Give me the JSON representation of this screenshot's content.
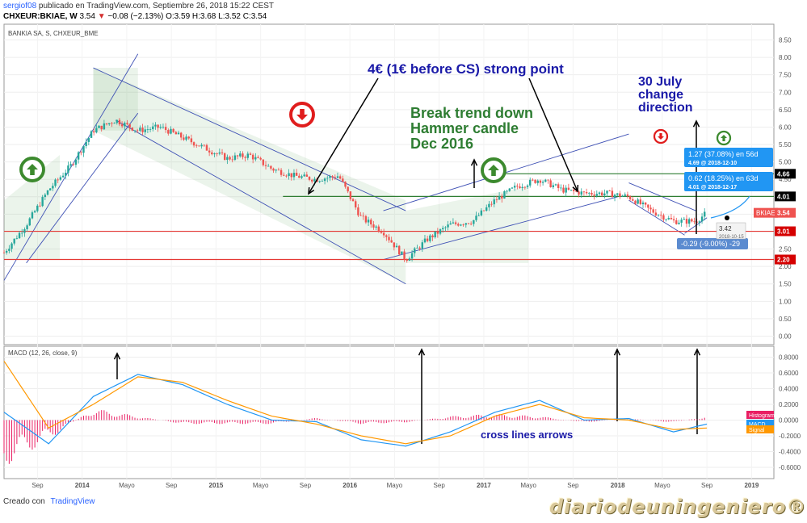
{
  "header": {
    "user": "sergiof08",
    "published": "publicado en TradingView.com, Septiembre 26, 2018 15:22 CEST",
    "symbol": "CHXEUR:BKIAE, W",
    "price": "3.54",
    "arrow": "▼",
    "change": "−0.08 (−2.13%)",
    "ohlc": "O:3.59 H:3.68 L:3.52 C:3.54"
  },
  "footer": {
    "created_with": "Creado con",
    "brand": "TradingView"
  },
  "watermark": "diariodeuningeniero®",
  "colors": {
    "up": "#26a69a",
    "down": "#ef5350",
    "macd": "#2196f3",
    "signal": "#ff9800",
    "histogram": "#e91e63",
    "annotation_blue": "#1a1aa8",
    "annotation_green": "#2e7d32",
    "support": "#e53935",
    "channel": "#3f51b5"
  },
  "chart_data": [
    {
      "type": "candlestick",
      "title": "BANKIA SA, S, CHXEUR_BME",
      "ylim": [
        -0.2,
        8.7
      ],
      "y_ticks": [
        "8.50",
        "8.00",
        "7.50",
        "7.00",
        "6.50",
        "6.00",
        "5.50",
        "5.00",
        "4.50",
        "4.00",
        "3.50",
        "3.00",
        "2.50",
        "2.00",
        "1.50",
        "1.00",
        "0.50",
        "0.00"
      ],
      "x_ticks": [
        "Sep",
        "2014",
        "Mayo",
        "Sep",
        "2015",
        "Mayo",
        "Sep",
        "2016",
        "Mayo",
        "Sep",
        "2017",
        "Mayo",
        "Sep",
        "2018",
        "Mayo",
        "Sep",
        "2019"
      ],
      "x": [
        "2013-06",
        "2013-08",
        "2013-10",
        "2013-12",
        "2014-02",
        "2014-04",
        "2014-06",
        "2014-08",
        "2014-10",
        "2014-12",
        "2015-02",
        "2015-04",
        "2015-06",
        "2015-08",
        "2015-10",
        "2015-12",
        "2016-02",
        "2016-04",
        "2016-06",
        "2016-08",
        "2016-10",
        "2016-12",
        "2017-02",
        "2017-04",
        "2017-06",
        "2017-08",
        "2017-10",
        "2017-12",
        "2018-02",
        "2018-04",
        "2018-06",
        "2018-08",
        "2018-09"
      ],
      "close": [
        2.4,
        3.2,
        4.2,
        4.9,
        5.9,
        6.2,
        5.9,
        6.0,
        5.7,
        5.4,
        5.1,
        5.2,
        4.8,
        4.6,
        4.5,
        4.6,
        3.4,
        3.0,
        2.2,
        2.8,
        3.2,
        3.3,
        3.9,
        4.3,
        4.5,
        4.2,
        4.1,
        4.1,
        4.0,
        3.6,
        3.3,
        3.3,
        3.54
      ],
      "price_labels": [
        {
          "text": "4.66",
          "value": 4.66,
          "color": "#000000"
        },
        {
          "text": "4.01",
          "value": 4.01,
          "color": "#000000"
        },
        {
          "text": "BKIAE",
          "value": 3.54,
          "color": "#ef5350"
        },
        {
          "text": "3.54",
          "value": 3.54,
          "color": "#ef5350"
        },
        {
          "text": "3.01",
          "value": 3.01,
          "color": "#d50000"
        },
        {
          "text": "2.20",
          "value": 2.2,
          "color": "#d50000"
        }
      ],
      "horizontal_lines": [
        {
          "value": 4.66,
          "color": "#2e7d32"
        },
        {
          "value": 4.01,
          "color": "#2e7d32"
        },
        {
          "value": 3.01,
          "color": "#e53935"
        },
        {
          "value": 2.2,
          "color": "#e53935"
        }
      ],
      "annotations": [
        {
          "text": "4€ (1€ before CS) strong point",
          "color": "#1a1aa8"
        },
        {
          "text": "Break trend down",
          "color": "#2e7d32"
        },
        {
          "text": "Hammer candle",
          "color": "#2e7d32"
        },
        {
          "text": "Dec 2016",
          "color": "#2e7d32"
        },
        {
          "text": "30 July",
          "color": "#1a1aa8"
        },
        {
          "text": "change",
          "color": "#1a1aa8"
        },
        {
          "text": "direction",
          "color": "#1a1aa8"
        }
      ],
      "projection_boxes": [
        {
          "line1": "1.27 (37.08%) en 56d",
          "line2": "4.69 @ 2018-12-10"
        },
        {
          "line1": "0.62 (18.25%) en 63d",
          "line2": "4.01 @ 2018-12-17"
        },
        {
          "line1": "-0.29 (-9.00%) -29",
          "line2": ""
        }
      ],
      "point_label": {
        "value": "3.42",
        "date": "2018-10-15"
      }
    },
    {
      "type": "line",
      "title": "MACD (12, 26, close, 9)",
      "ylim": [
        -0.75,
        0.95
      ],
      "y_ticks": [
        "0.8000",
        "0.6000",
        "0.4000",
        "0.2000",
        "0.0000",
        "-0.2000",
        "-0.4000",
        "-0.6000"
      ],
      "x": [
        "2013-06",
        "2013-10",
        "2014-02",
        "2014-06",
        "2014-10",
        "2015-02",
        "2015-06",
        "2015-10",
        "2016-02",
        "2016-06",
        "2016-10",
        "2017-02",
        "2017-06",
        "2017-10",
        "2018-02",
        "2018-06",
        "2018-09"
      ],
      "series": [
        {
          "name": "MACD",
          "values": [
            0.1,
            -0.3,
            0.3,
            0.58,
            0.45,
            0.2,
            0.0,
            -0.02,
            -0.25,
            -0.33,
            -0.15,
            0.1,
            0.25,
            0.0,
            0.02,
            -0.15,
            -0.05
          ]
        },
        {
          "name": "Signal",
          "values": [
            0.75,
            -0.1,
            0.2,
            0.55,
            0.48,
            0.25,
            0.05,
            -0.05,
            -0.2,
            -0.3,
            -0.2,
            0.05,
            0.2,
            0.03,
            0.0,
            -0.12,
            -0.1
          ]
        },
        {
          "name": "Histogram",
          "values": [
            -0.6,
            -0.25,
            0.15,
            0.05,
            -0.05,
            -0.05,
            -0.05,
            0.03,
            -0.05,
            -0.03,
            0.05,
            0.08,
            0.05,
            -0.03,
            0.02,
            -0.03,
            0.05
          ]
        }
      ],
      "annotation": {
        "text": "cross lines arrows",
        "color": "#1a1aa8"
      }
    }
  ]
}
